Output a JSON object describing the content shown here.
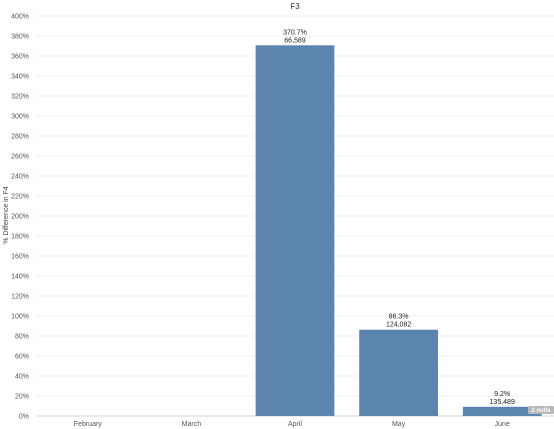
{
  "chart_data": {
    "type": "bar",
    "title": "F3",
    "xlabel": "",
    "ylabel": "% Difference in F4",
    "categories": [
      "February",
      "March",
      "April",
      "May",
      "June"
    ],
    "values": [
      null,
      null,
      370.7,
      86.3,
      9.2
    ],
    "pct_labels": [
      "",
      "",
      "370.7%",
      "86.3%",
      "9.2%"
    ],
    "count_labels": [
      "",
      "",
      "66,589",
      "124,082",
      "135,489"
    ],
    "ylim": [
      0,
      400
    ],
    "yticks": [
      "0%",
      "20%",
      "40%",
      "60%",
      "80%",
      "100%",
      "120%",
      "140%",
      "160%",
      "180%",
      "200%",
      "220%",
      "240%",
      "260%",
      "280%",
      "300%",
      "320%",
      "340%",
      "360%",
      "380%",
      "400%"
    ],
    "grid": true,
    "bar_color": "#5b85af",
    "nulls_indicator": "2 nulls"
  }
}
